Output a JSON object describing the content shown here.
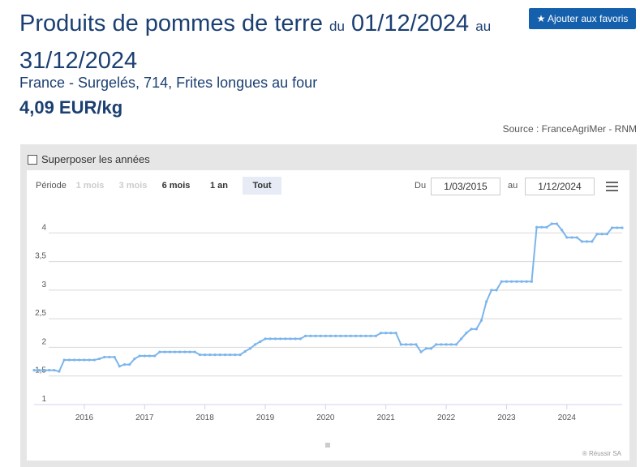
{
  "header": {
    "title": "Produits de pommes de terre",
    "du": "du",
    "start": "01/12/2024",
    "au": "au",
    "end": "31/12/2024",
    "favorite_button": "Ajouter aux favoris",
    "subtitle": "France - Surgelés, 714, Frites longues au four",
    "price": "4,09 EUR/kg",
    "source": "Source : FranceAgriMer - RNM"
  },
  "controls": {
    "overlay_label": "Superposer les années",
    "period_label": "Période",
    "buttons": [
      "1 mois",
      "3 mois",
      "6 mois",
      "1 an",
      "Tout"
    ],
    "from_label": "Du",
    "from_value": "1/03/2015",
    "to_label": "au",
    "to_value": "1/12/2024"
  },
  "credit": "® Réussir SA",
  "chart_data": {
    "type": "line",
    "color": "#7cb5ec",
    "grid": true,
    "xlim": [
      2015.167,
      2024.917
    ],
    "xticks": [
      2016,
      2017,
      2018,
      2019,
      2020,
      2021,
      2022,
      2023,
      2024
    ],
    "ylim": [
      1,
      4.5
    ],
    "yticks": [
      1,
      {
        "value": 1.5,
        "label": "1,5"
      },
      2,
      {
        "value": 2.5,
        "label": "2,5"
      },
      3,
      {
        "value": 3.5,
        "label": "3,5"
      },
      4
    ],
    "x": [
      2015.167,
      2015.25,
      2015.333,
      2015.417,
      2015.5,
      2015.583,
      2015.667,
      2015.75,
      2015.833,
      2015.917,
      2016,
      2016.083,
      2016.167,
      2016.25,
      2016.333,
      2016.417,
      2016.5,
      2016.583,
      2016.667,
      2016.75,
      2016.833,
      2016.917,
      2017,
      2017.083,
      2017.167,
      2017.25,
      2017.333,
      2017.417,
      2017.5,
      2017.583,
      2017.667,
      2017.75,
      2017.833,
      2017.917,
      2018,
      2018.083,
      2018.167,
      2018.25,
      2018.333,
      2018.417,
      2018.5,
      2018.583,
      2018.667,
      2018.75,
      2018.833,
      2018.917,
      2019,
      2019.083,
      2019.167,
      2019.25,
      2019.333,
      2019.417,
      2019.5,
      2019.583,
      2019.667,
      2019.75,
      2019.833,
      2019.917,
      2020,
      2020.083,
      2020.167,
      2020.25,
      2020.333,
      2020.417,
      2020.5,
      2020.583,
      2020.667,
      2020.75,
      2020.833,
      2020.917,
      2021,
      2021.083,
      2021.167,
      2021.25,
      2021.333,
      2021.417,
      2021.5,
      2021.583,
      2021.667,
      2021.75,
      2021.833,
      2021.917,
      2022,
      2022.083,
      2022.167,
      2022.25,
      2022.333,
      2022.417,
      2022.5,
      2022.583,
      2022.667,
      2022.75,
      2022.833,
      2022.917,
      2023,
      2023.083,
      2023.167,
      2023.25,
      2023.333,
      2023.417,
      2023.5,
      2023.583,
      2023.667,
      2023.75,
      2023.833,
      2023.917,
      2024,
      2024.083,
      2024.167,
      2024.25,
      2024.333,
      2024.417,
      2024.5,
      2024.583,
      2024.667,
      2024.75,
      2024.833,
      2024.917
    ],
    "values": [
      1.6,
      1.6,
      1.6,
      1.6,
      1.6,
      1.58,
      1.78,
      1.78,
      1.78,
      1.78,
      1.78,
      1.78,
      1.78,
      1.8,
      1.83,
      1.83,
      1.83,
      1.67,
      1.7,
      1.7,
      1.8,
      1.85,
      1.85,
      1.85,
      1.85,
      1.92,
      1.92,
      1.92,
      1.92,
      1.92,
      1.92,
      1.92,
      1.92,
      1.87,
      1.87,
      1.87,
      1.87,
      1.87,
      1.87,
      1.87,
      1.87,
      1.87,
      1.93,
      1.98,
      2.05,
      2.1,
      2.15,
      2.15,
      2.15,
      2.15,
      2.15,
      2.15,
      2.15,
      2.15,
      2.2,
      2.2,
      2.2,
      2.2,
      2.2,
      2.2,
      2.2,
      2.2,
      2.2,
      2.2,
      2.2,
      2.2,
      2.2,
      2.2,
      2.2,
      2.25,
      2.25,
      2.25,
      2.25,
      2.05,
      2.05,
      2.05,
      2.05,
      1.92,
      1.98,
      1.98,
      2.05,
      2.05,
      2.05,
      2.05,
      2.05,
      2.15,
      2.25,
      2.32,
      2.32,
      2.47,
      2.8,
      3.0,
      3.0,
      3.15,
      3.15,
      3.15,
      3.15,
      3.15,
      3.15,
      3.15,
      4.1,
      4.1,
      4.1,
      4.16,
      4.16,
      4.05,
      3.92,
      3.92,
      3.92,
      3.85,
      3.85,
      3.85,
      3.98,
      3.98,
      3.98,
      4.09,
      4.09,
      4.09
    ]
  }
}
